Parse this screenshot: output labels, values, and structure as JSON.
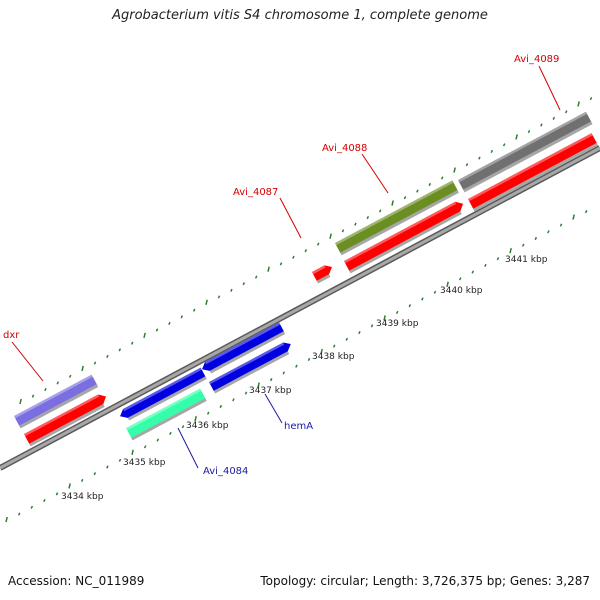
{
  "title": "Agrobacterium vitis S4 chromosome 1, complete genome",
  "footer": {
    "accession": "Accession: NC_011989",
    "summary": "Topology: circular; Length: 3,726,375 bp; Genes: 3,287"
  },
  "scale_labels": [
    "3434 kbp",
    "3435 kbp",
    "3436 kbp",
    "3437 kbp",
    "3438 kbp",
    "3439 kbp",
    "3440 kbp",
    "3441 kbp"
  ],
  "gene_labels": [
    {
      "id": "dxr",
      "text": "dxr",
      "color": "#d40000"
    },
    {
      "id": "avi4087",
      "text": "Avi_4087",
      "color": "#d40000"
    },
    {
      "id": "avi4088",
      "text": "Avi_4088",
      "color": "#d40000"
    },
    {
      "id": "avi4089",
      "text": "Avi_4089",
      "color": "#d40000"
    },
    {
      "id": "hemA",
      "text": "hemA",
      "color": "#1a1aa6"
    },
    {
      "id": "avi4084",
      "text": "Avi_4084",
      "color": "#1a1aa6"
    }
  ],
  "colors": {
    "backbone": "#8c8c8c",
    "tick": "#2e7d32",
    "cds": "#ff0000",
    "dxr": "#7b6ee0",
    "avi4088": "#6b8e23",
    "avi4089": "#707070",
    "blue_genes": "#0000e0",
    "avi4084": "#33ffaa"
  }
}
